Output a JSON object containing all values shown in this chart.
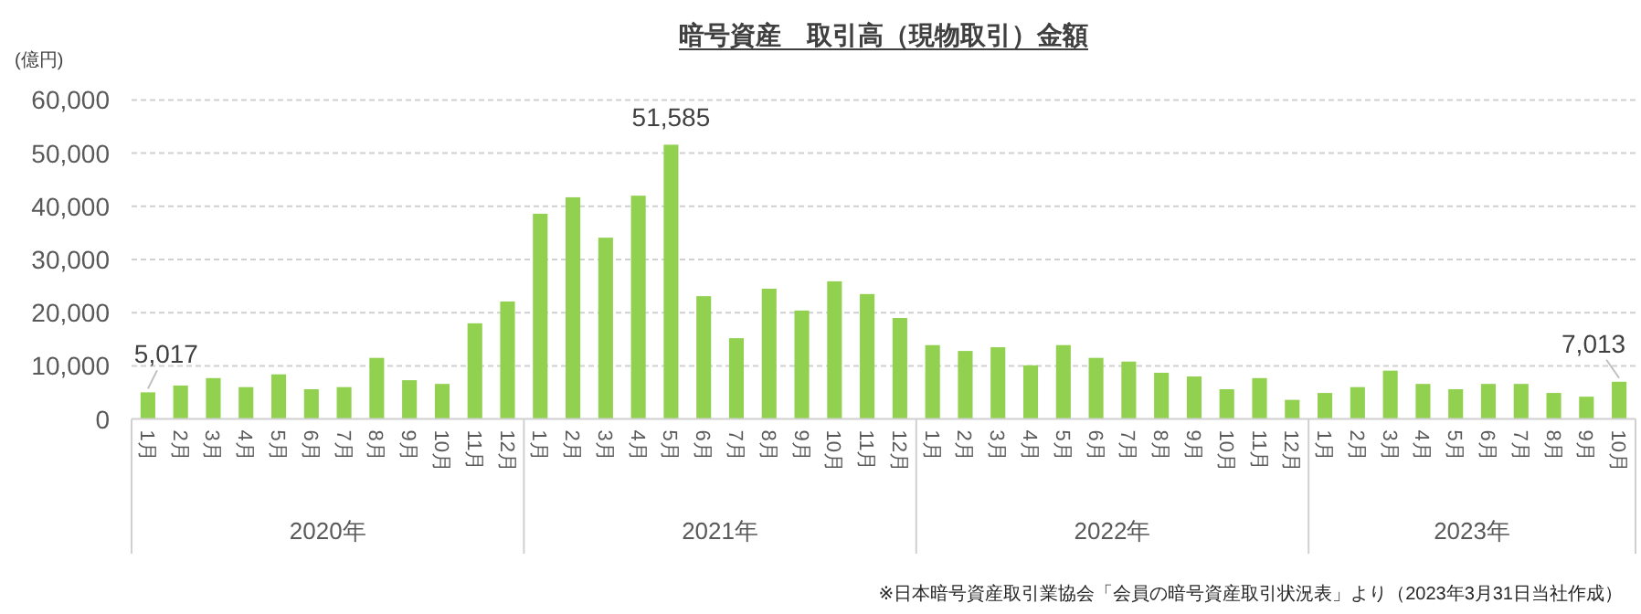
{
  "chart_data": {
    "type": "bar",
    "title": "暗号資産　取引高（現物取引）金額",
    "ylabel": "(億円)",
    "categories": [
      "1月",
      "2月",
      "3月",
      "4月",
      "5月",
      "6月",
      "7月",
      "8月",
      "9月",
      "10月",
      "11月",
      "12月",
      "1月",
      "2月",
      "3月",
      "4月",
      "5月",
      "6月",
      "7月",
      "8月",
      "9月",
      "10月",
      "11月",
      "12月",
      "1月",
      "2月",
      "3月",
      "4月",
      "5月",
      "6月",
      "7月",
      "8月",
      "9月",
      "10月",
      "11月",
      "12月",
      "1月",
      "2月",
      "3月",
      "4月",
      "5月",
      "6月",
      "7月",
      "8月",
      "9月",
      "10月"
    ],
    "values": [
      5017,
      6300,
      7700,
      6000,
      8400,
      5600,
      6000,
      11500,
      7300,
      6600,
      18000,
      22100,
      38600,
      41700,
      34100,
      42000,
      51585,
      23100,
      15200,
      24500,
      20400,
      25900,
      23500,
      19000,
      13900,
      12800,
      13500,
      10100,
      13900,
      11500,
      10800,
      8700,
      8000,
      5600,
      7700,
      3600,
      4900,
      6000,
      9100,
      6600,
      5600,
      6600,
      6600,
      4900,
      4200,
      7013
    ],
    "value_labels": [
      "5,017",
      null,
      null,
      null,
      null,
      null,
      null,
      null,
      null,
      null,
      null,
      null,
      null,
      null,
      null,
      null,
      "51,585",
      null,
      null,
      null,
      null,
      null,
      null,
      null,
      null,
      null,
      null,
      null,
      null,
      null,
      null,
      null,
      null,
      null,
      null,
      null,
      null,
      null,
      null,
      null,
      null,
      null,
      null,
      null,
      null,
      "7,013"
    ],
    "color": "#92d050",
    "ylim": [
      0,
      60000
    ],
    "yticks": [
      0,
      {
        "value": 10000,
        "label": "10,000"
      },
      {
        "value": 20000,
        "label": "20,000"
      },
      {
        "value": 30000,
        "label": "30,000"
      },
      {
        "value": 40000,
        "label": "40,000"
      },
      {
        "value": 50000,
        "label": "50,000"
      },
      {
        "value": 60000,
        "label": "60,000"
      }
    ],
    "grid": "y",
    "annotations": [
      "2020年",
      "2021年",
      "2022年",
      "2023年",
      "※日本暗号資産取引業協会「会員の暗号資産取引状況表」より（2023年3月31日当社作成）"
    ]
  }
}
